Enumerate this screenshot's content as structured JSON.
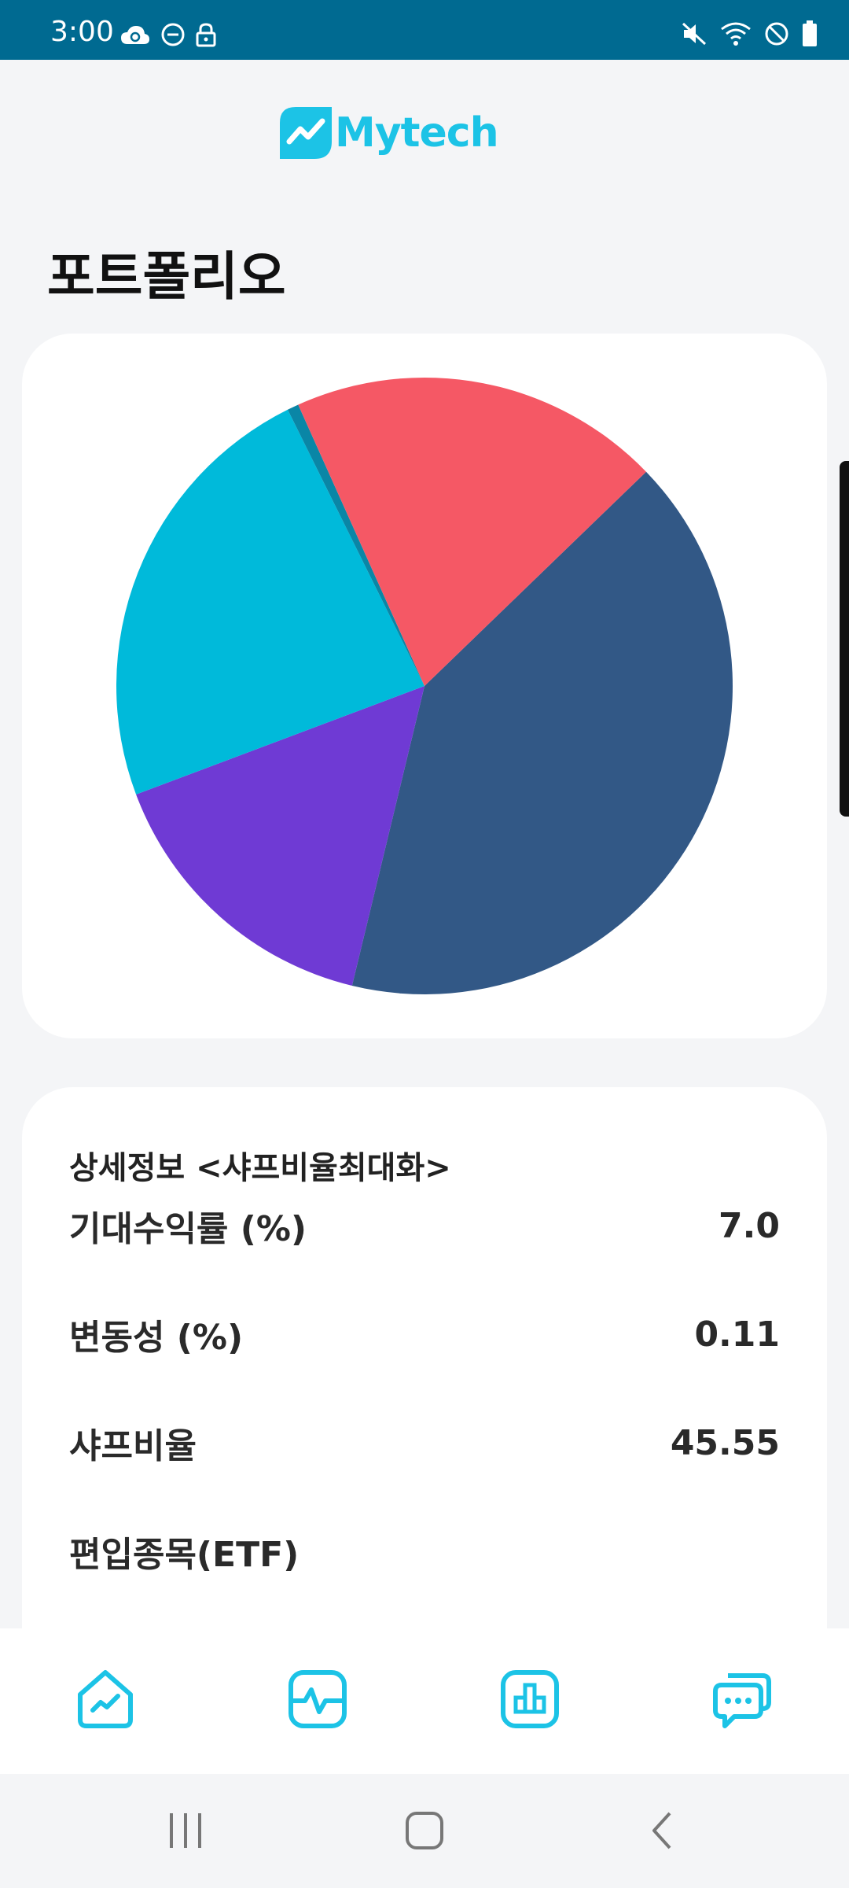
{
  "status_bar": {
    "time": "3:00",
    "left_icons": [
      "cloud-sync-icon",
      "do-not-disturb-icon",
      "lock-icon"
    ],
    "right_icons": [
      "mute-icon",
      "wifi-icon",
      "block-icon",
      "battery-icon"
    ]
  },
  "header": {
    "logo_text": "Mytech",
    "brand_color": "#1cc3e6"
  },
  "page": {
    "title": "포트폴리오"
  },
  "chart_data": {
    "type": "pie",
    "title": "",
    "slices": [
      {
        "value": 41.0,
        "color": "#325886"
      },
      {
        "value": 15.5,
        "color": "#6f3ad4"
      },
      {
        "value": 23.4,
        "color": "#00bada"
      },
      {
        "value": 0.6,
        "color": "#0a86a6"
      },
      {
        "value": 19.5,
        "color": "#f55865"
      }
    ]
  },
  "details": {
    "title": "상세정보 <샤프비율최대화>",
    "rows": [
      {
        "label": "기대수익률 (%)",
        "value": "7.0"
      },
      {
        "label": "변동성 (%)",
        "value": "0.11"
      },
      {
        "label": "샤프비율",
        "value": "45.55"
      },
      {
        "label": "편입종목(ETF)",
        "value": ""
      }
    ]
  },
  "bottom_nav": {
    "items": [
      "home-chart-icon",
      "pulse-icon",
      "bar-chart-icon",
      "chat-icon"
    ],
    "accent": "#1cc3e6"
  },
  "system_nav": {
    "buttons": [
      "recent-apps-icon",
      "home-icon",
      "back-icon"
    ]
  }
}
